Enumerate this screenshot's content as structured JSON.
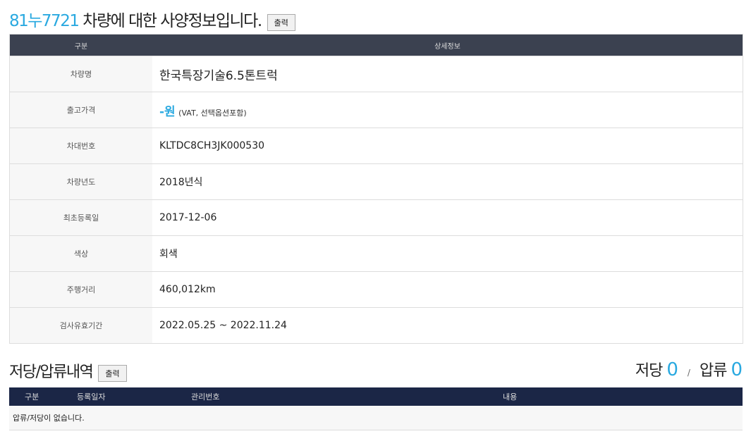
{
  "header": {
    "plate": "81누7721",
    "title_suffix": " 차량에 대한 사양정보입니다.",
    "print_label": "출력"
  },
  "spec_table": {
    "columns": [
      "구분",
      "상세정보"
    ],
    "rows": [
      {
        "label": "차량명",
        "value": "한국특장기술6.5톤트럭"
      },
      {
        "label": "출고가격",
        "value": "-원",
        "note": "(VAT, 선택옵션포함)"
      },
      {
        "label": "차대번호",
        "value": "KLTDC8CH3JK000530"
      },
      {
        "label": "차량년도",
        "value": "2018년식"
      },
      {
        "label": "최초등록일",
        "value": "2017-12-06"
      },
      {
        "label": "색상",
        "value": "회색"
      },
      {
        "label": "주행거리",
        "value": "460,012km"
      },
      {
        "label": "검사유효기간",
        "value": "2022.05.25 ~ 2022.11.24"
      }
    ]
  },
  "lien": {
    "title": "저당/압류내역",
    "print_label": "출력",
    "mortgage_label": "저당",
    "mortgage_count": "0",
    "separator": "/",
    "seizure_label": "압류",
    "seizure_count": "0",
    "columns": [
      "구분",
      "등록일자",
      "관리번호",
      "내용"
    ],
    "empty_message": "압류/저당이 없습니다."
  },
  "colors": {
    "accent": "#2aa9e0",
    "spec_header": "#3b4150",
    "lien_header": "#1b2646"
  }
}
